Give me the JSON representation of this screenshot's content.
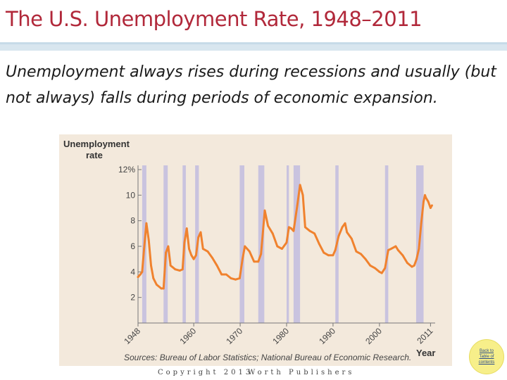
{
  "slide": {
    "title": "The U.S. Unemployment Rate, 1948–2011",
    "subtitle": "Unemployment always rises during recessions and usually (but not always) falls during periods of economic expansion.",
    "footer_left": "Copyright 2013",
    "footer_right": "Worth Publishers",
    "back_button_label": "Back to Table of contents"
  },
  "colors": {
    "title": "#b1283a",
    "line": "#f0822e",
    "recession": "#c9c3df",
    "panel": "#f3e9dc"
  },
  "chart_data": {
    "type": "line",
    "title": "",
    "y_title_line1": "Unemployment",
    "y_title_line2": "rate",
    "xlabel": "Year",
    "ylabel": "Unemployment rate",
    "ylim": [
      0,
      12
    ],
    "xlim": [
      1948,
      2012
    ],
    "x_ticks": [
      1948,
      1960,
      1970,
      1980,
      1990,
      2000,
      2011
    ],
    "x_tick_labels": [
      "1948",
      "1960",
      "1970",
      "1980",
      "1990",
      "2000",
      "2011"
    ],
    "y_ticks": [
      2,
      4,
      6,
      8,
      10,
      12
    ],
    "y_tick_labels": [
      "2",
      "4",
      "6",
      "8",
      "10",
      "12%"
    ],
    "source": "Sources: Bureau of Labor Statistics; National Bureau of Economic Research.",
    "recessions": [
      [
        1948.9,
        1949.8
      ],
      [
        1953.5,
        1954.4
      ],
      [
        1957.6,
        1958.3
      ],
      [
        1960.3,
        1961.1
      ],
      [
        1969.9,
        1970.9
      ],
      [
        1973.9,
        1975.2
      ],
      [
        1980.0,
        1980.5
      ],
      [
        1981.5,
        1982.9
      ],
      [
        1990.5,
        1991.2
      ],
      [
        2001.2,
        2001.9
      ],
      [
        2007.9,
        2009.5
      ]
    ],
    "series": [
      {
        "name": "Unemployment rate",
        "x": [
          1948.0,
          1948.5,
          1948.9,
          1949.3,
          1949.8,
          1950.3,
          1950.8,
          1951.3,
          1952.0,
          1953.0,
          1953.5,
          1954.0,
          1954.5,
          1955.0,
          1956.0,
          1957.0,
          1957.6,
          1958.0,
          1958.5,
          1959.0,
          1959.5,
          1960.0,
          1960.5,
          1961.0,
          1961.5,
          1962.0,
          1963.0,
          1964.0,
          1965.0,
          1966.0,
          1967.0,
          1968.0,
          1969.0,
          1969.9,
          1970.5,
          1971.0,
          1972.0,
          1973.0,
          1973.9,
          1974.5,
          1975.3,
          1976.0,
          1977.0,
          1978.0,
          1979.0,
          1980.0,
          1980.5,
          1981.0,
          1981.5,
          1982.3,
          1982.9,
          1983.5,
          1984.0,
          1985.0,
          1986.0,
          1987.0,
          1988.0,
          1989.0,
          1990.0,
          1990.5,
          1991.2,
          1992.0,
          1992.6,
          1993.0,
          1994.0,
          1995.0,
          1996.0,
          1997.0,
          1998.0,
          1999.0,
          2000.0,
          2000.5,
          2001.2,
          2001.9,
          2002.5,
          2003.5,
          2004.0,
          2005.0,
          2006.0,
          2007.0,
          2007.5,
          2008.0,
          2008.5,
          2009.0,
          2009.5,
          2009.8,
          2010.0,
          2010.5,
          2011.0,
          2011.3
        ],
        "values": [
          3.6,
          3.8,
          4.0,
          5.8,
          7.8,
          6.5,
          4.5,
          3.5,
          3.0,
          2.7,
          2.7,
          5.5,
          6.0,
          4.5,
          4.2,
          4.1,
          4.2,
          6.3,
          7.4,
          5.8,
          5.3,
          5.0,
          5.3,
          6.7,
          7.1,
          5.8,
          5.6,
          5.1,
          4.5,
          3.8,
          3.8,
          3.5,
          3.4,
          3.5,
          5.0,
          6.0,
          5.6,
          4.8,
          4.8,
          5.4,
          8.8,
          7.6,
          7.0,
          6.0,
          5.8,
          6.3,
          7.5,
          7.4,
          7.2,
          9.2,
          10.8,
          10.0,
          7.5,
          7.2,
          7.0,
          6.2,
          5.5,
          5.3,
          5.3,
          5.7,
          6.8,
          7.5,
          7.8,
          7.1,
          6.6,
          5.6,
          5.4,
          5.0,
          4.5,
          4.3,
          4.0,
          3.9,
          4.3,
          5.7,
          5.8,
          6.0,
          5.7,
          5.3,
          4.7,
          4.4,
          4.5,
          5.0,
          5.8,
          7.8,
          9.5,
          10.0,
          9.8,
          9.5,
          9.0,
          9.2
        ]
      }
    ]
  }
}
